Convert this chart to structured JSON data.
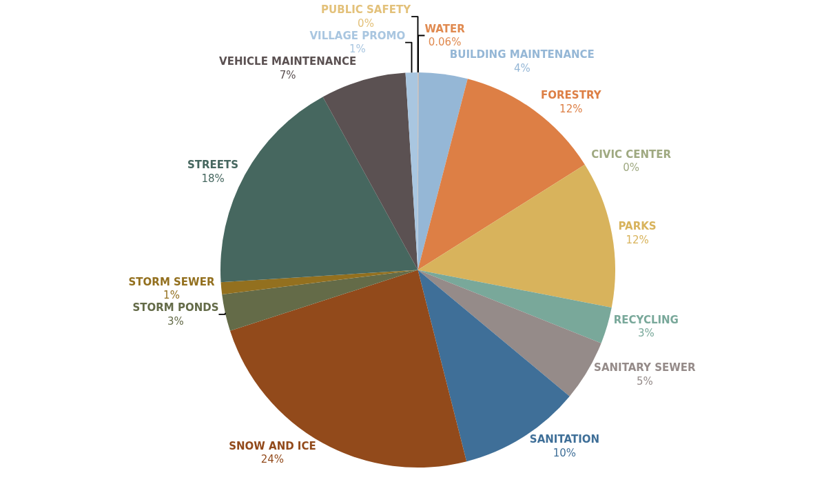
{
  "chart_data": {
    "type": "pie",
    "categories": [
      "WATER",
      "BUILDING MAINTENANCE",
      "FORESTRY",
      "CIVIC CENTER",
      "PARKS",
      "RECYCLING",
      "SANITARY SEWER",
      "SANITATION",
      "SNOW AND ICE",
      "STORM PONDS",
      "STORM SEWER",
      "STREETS",
      "VEHICLE MAINTENANCE",
      "VILLAGE PROMO",
      "PUBLIC SAFETY"
    ],
    "values": [
      0.06,
      4,
      12,
      0,
      12,
      3,
      5,
      10,
      24,
      3,
      1,
      18,
      7,
      1,
      0
    ],
    "value_labels": [
      "0.06%",
      "4%",
      "12%",
      "0%",
      "12%",
      "3%",
      "5%",
      "10%",
      "24%",
      "3%",
      "1%",
      "18%",
      "7%",
      "1%",
      "0%"
    ],
    "colors": [
      "#e08a50",
      "#95b7d6",
      "#dd7f45",
      "#9fa981",
      "#d8b35c",
      "#79a89a",
      "#958b89",
      "#3f6f98",
      "#924a1b",
      "#646b48",
      "#93701f",
      "#46675f",
      "#5b5152",
      "#a9c6e0",
      "#e3c17a"
    ],
    "data_labels": true,
    "legend": false
  }
}
